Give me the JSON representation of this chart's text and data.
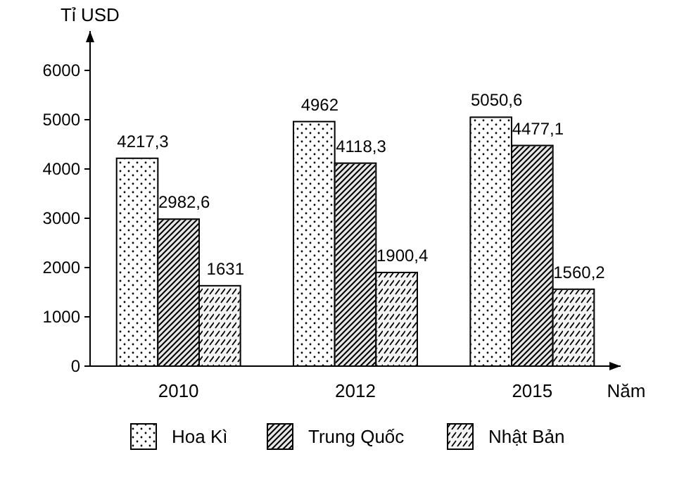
{
  "chart_data": {
    "type": "bar",
    "xlabel": "Năm",
    "ylabel": "Tỉ USD",
    "categories": [
      "2010",
      "2012",
      "2015"
    ],
    "series": [
      {
        "name": "Hoa Kì",
        "color": "#fdfdfd",
        "values": [
          4217.3,
          4962,
          5050.6
        ],
        "value_labels": [
          "4217,3",
          "4962",
          "5050,6"
        ]
      },
      {
        "name": "Trung Quốc",
        "color": "#e6e6e6",
        "values": [
          2982.6,
          4118.3,
          4477.1
        ],
        "value_labels": [
          "2982,6",
          "4118,3",
          "4477,1"
        ]
      },
      {
        "name": "Nhật Bản",
        "color": "#f3f3f3",
        "values": [
          1631,
          1900.4,
          1560.2
        ],
        "value_labels": [
          "1631",
          "1900,4",
          "1560,2"
        ]
      }
    ],
    "ylim": [
      0,
      6800
    ],
    "yticks": [
      0,
      1000,
      2000,
      3000,
      4000,
      5000,
      6000
    ],
    "grid": false,
    "legend": "bottom"
  }
}
